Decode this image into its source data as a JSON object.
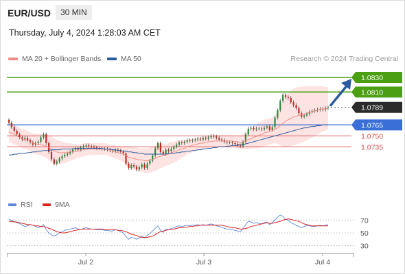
{
  "header": {
    "pair": "EUR/USD",
    "timeframe": "30 MIN",
    "datetime": "Thursday, July 4, 2024 1:28:03 AM CET"
  },
  "legend": {
    "ma20_label": "MA 20 + Bollinger Bands",
    "ma50_label": "MA 50",
    "ma20_color": "#f08c88",
    "ma50_color": "#2c5a9e",
    "credit": "Research © 2024 Trading Central"
  },
  "rsi_legend": {
    "rsi_label": "RSI",
    "ma9_label": "9MA",
    "rsi_color": "#5b86d9",
    "ma9_color": "#d8241f"
  },
  "colors": {
    "up_candle": "#2a8a3a",
    "down_candle": "#c4261d",
    "resistance": "#4b9f12",
    "support_blue": "#3a6fd8",
    "support_red": "#d84a4a",
    "band_fill": "#fde4e2",
    "forecast_arrow": "#2c5a9e",
    "current_label": "#2b2b2b"
  },
  "chart_data": [
    {
      "type": "candlestick",
      "ylim": [
        1.068,
        1.0845
      ],
      "x_ticks": [
        "Jul 2",
        "Jul 3",
        "Jul 4"
      ],
      "levels": [
        {
          "value": 1.083,
          "label": "1.0830",
          "kind": "resistance"
        },
        {
          "value": 1.081,
          "label": "1.0810",
          "kind": "resistance"
        },
        {
          "value": 1.0789,
          "label": "1.0789",
          "kind": "current"
        },
        {
          "value": 1.0765,
          "label": "1.0765",
          "kind": "support"
        },
        {
          "value": 1.075,
          "label": "1.0750",
          "kind": "support-minor"
        },
        {
          "value": 1.0735,
          "label": "1.0735",
          "kind": "support-minor"
        }
      ],
      "forecast": {
        "from": 1.0789,
        "to": 1.083,
        "direction": "up"
      },
      "close_series": [
        1.0768,
        1.0762,
        1.0757,
        1.0752,
        1.0748,
        1.0745,
        1.0747,
        1.0744,
        1.0741,
        1.0738,
        1.074,
        1.0742,
        1.0748,
        1.0752,
        1.074,
        1.0728,
        1.0718,
        1.0712,
        1.0715,
        1.0719,
        1.0722,
        1.0724,
        1.0726,
        1.0728,
        1.0731,
        1.0733,
        1.0731,
        1.0734,
        1.0736,
        1.0737,
        1.0736,
        1.0735,
        1.0734,
        1.0733,
        1.0733,
        1.0732,
        1.0732,
        1.0731,
        1.073,
        1.0729,
        1.0731,
        1.073,
        1.0728,
        1.0726,
        1.0712,
        1.0706,
        1.071,
        1.0708,
        1.0704,
        1.0707,
        1.0711,
        1.0706,
        1.0712,
        1.0716,
        1.0723,
        1.0733,
        1.074,
        1.0728,
        1.0725,
        1.0731,
        1.0729,
        1.0732,
        1.0735,
        1.0738,
        1.0741,
        1.074,
        1.0742,
        1.0744,
        1.0743,
        1.0744,
        1.0745,
        1.0746,
        1.0745,
        1.0747,
        1.0746,
        1.0748,
        1.075,
        1.0749,
        1.0747,
        1.0745,
        1.0744,
        1.0742,
        1.0741,
        1.0741,
        1.074,
        1.0739,
        1.0737,
        1.0736,
        1.0742,
        1.0752,
        1.076,
        1.0761,
        1.0759,
        1.076,
        1.076,
        1.0759,
        1.0761,
        1.0763,
        1.0758,
        1.0762,
        1.0775,
        1.0785,
        1.0798,
        1.0806,
        1.0803,
        1.0802,
        1.0796,
        1.0792,
        1.0788,
        1.0781,
        1.0776,
        1.0778,
        1.078,
        1.0783,
        1.0784,
        1.0785,
        1.0786,
        1.0787,
        1.0786,
        1.0788,
        1.0789
      ],
      "ma20_series": [
        1.0755,
        1.0754,
        1.0752,
        1.075,
        1.0748,
        1.0746,
        1.0745,
        1.0744,
        1.0742,
        1.074,
        1.0739,
        1.0738,
        1.0738,
        1.0737,
        1.0736,
        1.0734,
        1.0731,
        1.0729,
        1.0728,
        1.0727,
        1.0727,
        1.0727,
        1.0727,
        1.0728,
        1.0728,
        1.0729,
        1.0729,
        1.073,
        1.0731,
        1.0731,
        1.0732,
        1.0732,
        1.0732,
        1.0732,
        1.0732,
        1.0732,
        1.0732,
        1.0731,
        1.073,
        1.0729,
        1.0728,
        1.0727,
        1.0726,
        1.0725,
        1.0723,
        1.0721,
        1.072,
        1.0719,
        1.0718,
        1.0717,
        1.0717,
        1.0716,
        1.0716,
        1.0717,
        1.0718,
        1.0719,
        1.0721,
        1.0722,
        1.0723,
        1.0724,
        1.0725,
        1.0727,
        1.0728,
        1.0729,
        1.0731,
        1.0732,
        1.0733,
        1.0735,
        1.0736,
        1.0737,
        1.0738,
        1.0739,
        1.074,
        1.074,
        1.0741,
        1.0742,
        1.0742,
        1.0743,
        1.0743,
        1.0743,
        1.0743,
        1.0743,
        1.0743,
        1.0743,
        1.0743,
        1.0742,
        1.0742,
        1.0741,
        1.0742,
        1.0743,
        1.0745,
        1.0746,
        1.0748,
        1.0749,
        1.0751,
        1.0752,
        1.0754,
        1.0755,
        1.0756,
        1.0757,
        1.0759,
        1.0761,
        1.0764,
        1.0767,
        1.077,
        1.0772,
        1.0774,
        1.0776,
        1.0777,
        1.0778,
        1.0779,
        1.078,
        1.0781,
        1.0782,
        1.0783,
        1.0784,
        1.0785,
        1.0786,
        1.0787,
        1.0787,
        1.0788
      ],
      "bb_width_series": [
        0.0014,
        0.0014,
        0.0014,
        0.0013,
        0.0013,
        0.0013,
        0.0013,
        0.0013,
        0.0013,
        0.0013,
        0.0014,
        0.0014,
        0.0015,
        0.0015,
        0.0016,
        0.0017,
        0.0018,
        0.0018,
        0.0017,
        0.0016,
        0.0015,
        0.0014,
        0.0013,
        0.0012,
        0.0011,
        0.001,
        0.0009,
        0.0009,
        0.0009,
        0.0009,
        0.0008,
        0.0008,
        0.0008,
        0.0008,
        0.0008,
        0.0008,
        0.0008,
        0.0008,
        0.0008,
        0.0009,
        0.0009,
        0.0009,
        0.001,
        0.0011,
        0.0013,
        0.0014,
        0.0015,
        0.0015,
        0.0016,
        0.0016,
        0.0016,
        0.0017,
        0.0017,
        0.0017,
        0.0017,
        0.0017,
        0.0017,
        0.0016,
        0.0016,
        0.0015,
        0.0015,
        0.0015,
        0.0014,
        0.0014,
        0.0013,
        0.0012,
        0.0011,
        0.001,
        0.001,
        0.0009,
        0.0009,
        0.0008,
        0.0008,
        0.0008,
        0.0008,
        0.0008,
        0.0008,
        0.0008,
        0.0008,
        0.0008,
        0.0008,
        0.0008,
        0.0008,
        0.0008,
        0.0008,
        0.0008,
        0.0009,
        0.0009,
        0.001,
        0.0011,
        0.0013,
        0.0014,
        0.0015,
        0.0016,
        0.0017,
        0.0018,
        0.0018,
        0.0018,
        0.0018,
        0.0018,
        0.0019,
        0.0022,
        0.0027,
        0.0032,
        0.0035,
        0.0037,
        0.0038,
        0.0039,
        0.0039,
        0.0039,
        0.0038,
        0.0038,
        0.0037,
        0.0036,
        0.0035,
        0.0034,
        0.0033,
        0.0032,
        0.0031,
        0.003,
        0.0029
      ],
      "ma50_series": [
        1.0724,
        1.0724,
        1.0725,
        1.0725,
        1.0726,
        1.0726,
        1.0726,
        1.0727,
        1.0727,
        1.0728,
        1.0728,
        1.0729,
        1.0729,
        1.073,
        1.073,
        1.073,
        1.0731,
        1.0731,
        1.0731,
        1.0731,
        1.0732,
        1.0732,
        1.0732,
        1.0732,
        1.0732,
        1.0733,
        1.0733,
        1.0733,
        1.0733,
        1.0733,
        1.0733,
        1.0733,
        1.0733,
        1.0733,
        1.0733,
        1.0733,
        1.0732,
        1.0732,
        1.0732,
        1.0731,
        1.0731,
        1.073,
        1.073,
        1.0729,
        1.0729,
        1.0728,
        1.0728,
        1.0727,
        1.0727,
        1.0726,
        1.0726,
        1.0725,
        1.0725,
        1.0725,
        1.0725,
        1.0725,
        1.0725,
        1.0725,
        1.0725,
        1.0725,
        1.0726,
        1.0726,
        1.0726,
        1.0727,
        1.0727,
        1.0728,
        1.0728,
        1.0729,
        1.0729,
        1.073,
        1.073,
        1.0731,
        1.0731,
        1.0732,
        1.0732,
        1.0733,
        1.0733,
        1.0734,
        1.0734,
        1.0735,
        1.0735,
        1.0735,
        1.0736,
        1.0736,
        1.0737,
        1.0737,
        1.0737,
        1.0738,
        1.0738,
        1.0739,
        1.074,
        1.0741,
        1.0742,
        1.0743,
        1.0744,
        1.0745,
        1.0746,
        1.0747,
        1.0748,
        1.0749,
        1.075,
        1.0751,
        1.0752,
        1.0753,
        1.0754,
        1.0755,
        1.0756,
        1.0757,
        1.0758,
        1.0759,
        1.076,
        1.0761,
        1.0761,
        1.0762,
        1.0763,
        1.0763,
        1.0764,
        1.0764,
        1.0765,
        1.0765,
        1.0765
      ]
    },
    {
      "type": "line",
      "name": "RSI",
      "ylim": [
        20,
        80
      ],
      "y_ticks": [
        70,
        50,
        30
      ],
      "rsi_series": [
        72,
        69,
        68,
        66,
        65,
        62,
        60,
        61,
        63,
        62,
        60,
        58,
        60,
        63,
        55,
        50,
        47,
        45,
        47,
        50,
        52,
        54,
        55,
        56,
        57,
        58,
        56,
        55,
        57,
        58,
        57,
        56,
        56,
        55,
        55,
        55,
        54,
        54,
        53,
        53,
        55,
        54,
        52,
        50,
        44,
        40,
        43,
        42,
        40,
        42,
        45,
        42,
        46,
        49,
        53,
        57,
        61,
        54,
        51,
        56,
        55,
        57,
        58,
        60,
        61,
        60,
        61,
        62,
        61,
        62,
        62,
        63,
        62,
        63,
        62,
        63,
        64,
        63,
        61,
        60,
        59,
        57,
        56,
        56,
        55,
        54,
        53,
        52,
        57,
        63,
        68,
        67,
        65,
        66,
        65,
        64,
        66,
        67,
        63,
        66,
        70,
        75,
        78,
        76,
        71,
        70,
        66,
        64,
        62,
        60,
        58,
        60,
        62,
        61,
        60,
        60,
        61,
        62,
        61,
        62,
        63
      ],
      "ma9_series": [
        68,
        68,
        67,
        67,
        66,
        65,
        64,
        63,
        63,
        62,
        61,
        61,
        60,
        60,
        59,
        57,
        56,
        54,
        52,
        51,
        50,
        50,
        51,
        52,
        53,
        54,
        55,
        55,
        56,
        56,
        56,
        56,
        56,
        56,
        56,
        56,
        55,
        55,
        55,
        55,
        55,
        54,
        54,
        53,
        52,
        50,
        48,
        47,
        46,
        44,
        43,
        43,
        43,
        44,
        45,
        47,
        50,
        52,
        53,
        54,
        55,
        55,
        56,
        57,
        58,
        58,
        59,
        59,
        60,
        60,
        61,
        61,
        62,
        62,
        62,
        62,
        62,
        62,
        62,
        62,
        62,
        61,
        60,
        59,
        58,
        58,
        57,
        56,
        56,
        57,
        58,
        60,
        61,
        62,
        63,
        64,
        65,
        66,
        65,
        65,
        66,
        67,
        68,
        70,
        71,
        72,
        71,
        70,
        69,
        68,
        66,
        64,
        63,
        62,
        61,
        61,
        61,
        61,
        61,
        61,
        61
      ]
    }
  ]
}
